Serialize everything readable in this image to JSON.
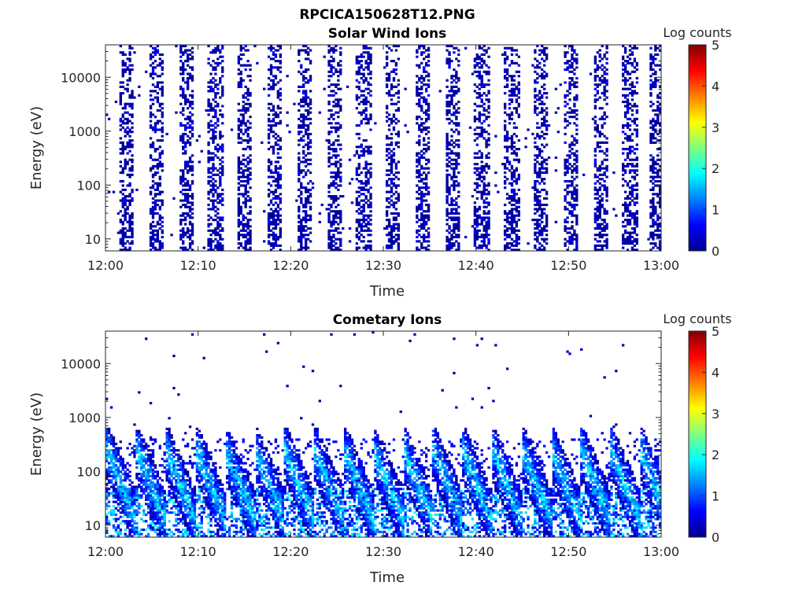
{
  "figure": {
    "title": "RPCICA150628T12.PNG"
  },
  "colorbar": {
    "label": "Log counts",
    "ticks": [
      "0",
      "1",
      "2",
      "3",
      "4",
      "5"
    ],
    "range": [
      0,
      5
    ],
    "colormap": "jet"
  },
  "chart_data": [
    {
      "type": "heatmap",
      "title": "Solar Wind Ions",
      "xlabel": "Time",
      "ylabel": "Energy (eV)",
      "x_ticks": [
        "12:00",
        "12:10",
        "12:20",
        "12:30",
        "12:40",
        "12:50",
        "13:00"
      ],
      "y_ticks": [
        "10",
        "100",
        "1000",
        "10000"
      ],
      "xlim": [
        "12:00",
        "13:00"
      ],
      "ylim": [
        6,
        40000
      ],
      "yscale": "log",
      "zlim": [
        0,
        5
      ],
      "colorbar_label": "Log counts",
      "scan_start_times_min": [
        2,
        5.2,
        8.5,
        11.7,
        14.8,
        18,
        21.3,
        24.5,
        27.6,
        30.8,
        34,
        37.2,
        40.4,
        43.6,
        46.8,
        50,
        53.2,
        56.4,
        59.4
      ],
      "typical_log_counts": [
        0,
        0.5
      ],
      "grid": false
    },
    {
      "type": "heatmap",
      "title": "Cometary Ions",
      "xlabel": "Time",
      "ylabel": "Energy (eV)",
      "x_ticks": [
        "12:00",
        "12:10",
        "12:20",
        "12:30",
        "12:40",
        "12:50",
        "13:00"
      ],
      "y_ticks": [
        "10",
        "100",
        "1000",
        "10000"
      ],
      "xlim": [
        "12:00",
        "13:00"
      ],
      "ylim": [
        6,
        40000
      ],
      "yscale": "log",
      "zlim": [
        0,
        5
      ],
      "colorbar_label": "Log counts",
      "peak_energy_range_eV": [
        10,
        500
      ],
      "peak_log_counts": 2.2,
      "grid": false
    }
  ]
}
